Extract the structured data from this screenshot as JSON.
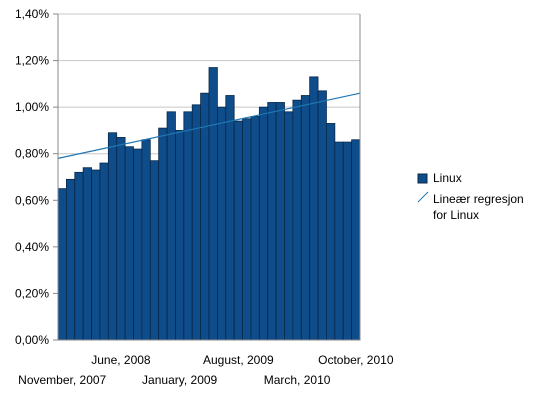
{
  "chart_data": {
    "type": "bar",
    "title": "",
    "xlabel": "",
    "ylabel": "",
    "ylim": [
      0,
      1.4
    ],
    "y_ticks": [
      0,
      0.2,
      0.4,
      0.6,
      0.8,
      1.0,
      1.2,
      1.4
    ],
    "y_tick_labels": [
      "0,00%",
      "0,20%",
      "0,40%",
      "0,60%",
      "0,80%",
      "1,00%",
      "1,20%",
      "1,40%"
    ],
    "grid": "horizontal",
    "legend_position": "right",
    "colors": {
      "bar": "#0f4c8a",
      "bar_edge": "#07284a",
      "trend": "#1f77b4",
      "grid": "#c8c8c8"
    },
    "categories": [
      "November, 2007",
      "December, 2007",
      "January, 2008",
      "February, 2008",
      "March, 2008",
      "April, 2008",
      "May, 2008",
      "June, 2008",
      "July, 2008",
      "August, 2008",
      "September, 2008",
      "October, 2008",
      "November, 2008",
      "December, 2008",
      "January, 2009",
      "February, 2009",
      "March, 2009",
      "April, 2009",
      "May, 2009",
      "June, 2009",
      "July, 2009",
      "August, 2009",
      "September, 2009",
      "October, 2009",
      "November, 2009",
      "December, 2009",
      "January, 2010",
      "February, 2010",
      "March, 2010",
      "April, 2010",
      "May, 2010",
      "June, 2010",
      "July, 2010",
      "August, 2010",
      "September, 2010",
      "October, 2010"
    ],
    "x_tick_labels": [
      {
        "label": "June, 2008",
        "index": 7,
        "row": 1
      },
      {
        "label": "August, 2009",
        "index": 21,
        "row": 1
      },
      {
        "label": "October, 2010",
        "index": 35,
        "row": 1
      },
      {
        "label": "November, 2007",
        "index": 0,
        "row": 2
      },
      {
        "label": "January, 2009",
        "index": 14,
        "row": 2
      },
      {
        "label": "March, 2010",
        "index": 28,
        "row": 2
      }
    ],
    "series": [
      {
        "name": "Linux",
        "values": [
          0.65,
          0.69,
          0.72,
          0.74,
          0.73,
          0.76,
          0.89,
          0.87,
          0.83,
          0.82,
          0.86,
          0.77,
          0.91,
          0.98,
          0.9,
          0.98,
          1.01,
          1.06,
          1.17,
          1.0,
          1.05,
          0.94,
          0.95,
          0.96,
          1.0,
          1.02,
          1.02,
          0.98,
          1.03,
          1.05,
          1.13,
          1.07,
          0.93,
          0.85,
          0.85,
          0.86
        ]
      }
    ],
    "trendline": {
      "name": "Lineær regresjon for Linux",
      "start": 0.78,
      "end": 1.06
    }
  }
}
